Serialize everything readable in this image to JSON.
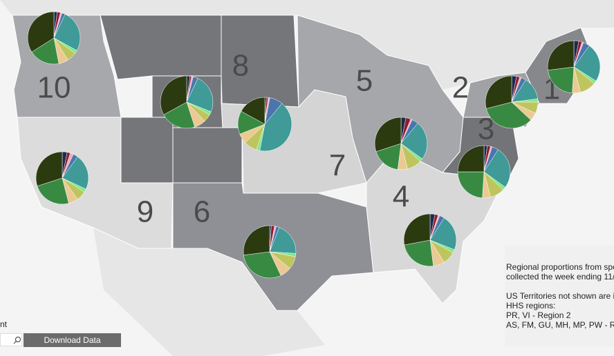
{
  "colors": [
    "#1c2b4c",
    "#8c1b2e",
    "#ebaabb",
    "#4a76ad",
    "#3f9a98",
    "#7ee88a",
    "#bfc55e",
    "#ebc993",
    "#388a42",
    "#2c3a10"
  ],
  "regions": [
    {
      "label": "10",
      "values": [
        2,
        2,
        1,
        2,
        26,
        2,
        6,
        6,
        19,
        34
      ]
    },
    {
      "label": "8",
      "values": [
        2,
        1,
        1,
        3,
        24,
        2,
        5,
        7,
        22,
        33
      ]
    },
    {
      "label": "7",
      "values": [
        1,
        1,
        1,
        8,
        42,
        2,
        8,
        6,
        14,
        17
      ]
    },
    {
      "label": "9",
      "values": [
        3,
        2,
        2,
        3,
        22,
        2,
        6,
        6,
        24,
        30
      ]
    },
    {
      "label": "6",
      "values": [
        1,
        2,
        1,
        2,
        20,
        2,
        8,
        7,
        30,
        27
      ]
    },
    {
      "label": "5",
      "values": [
        3,
        3,
        1,
        4,
        24,
        2,
        9,
        6,
        18,
        30
      ]
    },
    {
      "label": "4",
      "values": [
        3,
        2,
        1,
        3,
        22,
        2,
        8,
        7,
        24,
        28
      ]
    },
    {
      "label": "3",
      "values": [
        2,
        2,
        1,
        4,
        26,
        2,
        9,
        5,
        24,
        25
      ]
    },
    {
      "label": "2",
      "values": [
        3,
        2,
        1,
        3,
        14,
        2,
        7,
        5,
        34,
        29
      ]
    },
    {
      "label": "1",
      "values": [
        3,
        2,
        1,
        4,
        24,
        2,
        10,
        5,
        22,
        27
      ]
    }
  ],
  "note": [
    "Regional proportions from spe",
    "collected the week ending 11/",
    "",
    "US Territories not shown are i",
    "HHS regions:",
    "PR, VI - Region 2",
    "AS, FM, GU, MH, MP, PW - R"
  ],
  "search_label": "nt",
  "download_button": "Download Data"
}
